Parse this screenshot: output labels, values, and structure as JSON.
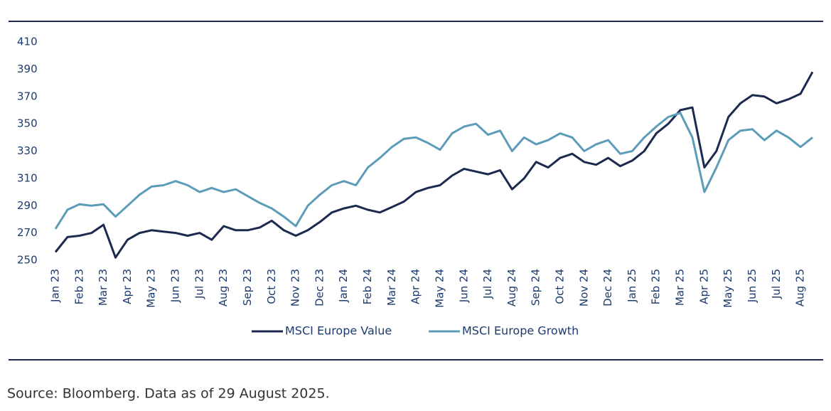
{
  "chart_data": {
    "type": "line",
    "categories": [
      "Jan 23",
      null,
      "Feb 23",
      null,
      "Mar 23",
      null,
      "Apr 23",
      null,
      "May 23",
      null,
      "Jun 23",
      null,
      "Jul 23",
      null,
      "Aug 23",
      null,
      "Sep 23",
      null,
      "Oct 23",
      null,
      "Nov 23",
      null,
      "Dec 23",
      null,
      "Jan 24",
      null,
      "Feb 24",
      null,
      "Mar 24",
      null,
      "Apr 24",
      null,
      "May 24",
      null,
      "Jun 24",
      null,
      "Jul 24",
      null,
      "Aug 24",
      null,
      "Sep 24",
      null,
      "Oct 24",
      null,
      "Nov 24",
      null,
      "Dec 24",
      null,
      "Jan 25",
      null,
      "Feb 25",
      null,
      "Mar 25",
      null,
      "Apr 25",
      null,
      "May 25",
      null,
      "Jun 25",
      null,
      "Jul 25",
      null,
      "Aug 25",
      null
    ],
    "series": [
      {
        "name": "MSCI Europe Value",
        "color": "#1b2a4e",
        "values": [
          256,
          267,
          268,
          270,
          276,
          252,
          265,
          270,
          272,
          271,
          270,
          268,
          270,
          265,
          275,
          272,
          272,
          274,
          279,
          272,
          268,
          272,
          278,
          285,
          288,
          290,
          287,
          285,
          289,
          293,
          300,
          303,
          305,
          312,
          317,
          315,
          313,
          316,
          302,
          310,
          322,
          318,
          325,
          328,
          322,
          320,
          325,
          319,
          323,
          330,
          343,
          350,
          360,
          362,
          318,
          330,
          355,
          365,
          371,
          370,
          365,
          368,
          372,
          388
        ]
      },
      {
        "name": "MSCI Europe Growth",
        "color": "#5d9cb9",
        "values": [
          273,
          287,
          291,
          290,
          291,
          282,
          290,
          298,
          304,
          305,
          308,
          305,
          300,
          303,
          300,
          302,
          297,
          292,
          288,
          282,
          275,
          290,
          298,
          305,
          308,
          305,
          318,
          325,
          333,
          339,
          340,
          336,
          331,
          343,
          348,
          350,
          342,
          345,
          330,
          340,
          335,
          338,
          343,
          340,
          330,
          335,
          338,
          328,
          330,
          340,
          348,
          355,
          358,
          340,
          300,
          318,
          338,
          345,
          346,
          338,
          345,
          340,
          333,
          340
        ]
      }
    ],
    "ylim": [
      250,
      410
    ],
    "yticks": [
      250,
      270,
      290,
      310,
      330,
      350,
      370,
      390,
      410
    ],
    "grid": false,
    "source": "Source: Bloomberg. Data as of 29 August 2025."
  }
}
